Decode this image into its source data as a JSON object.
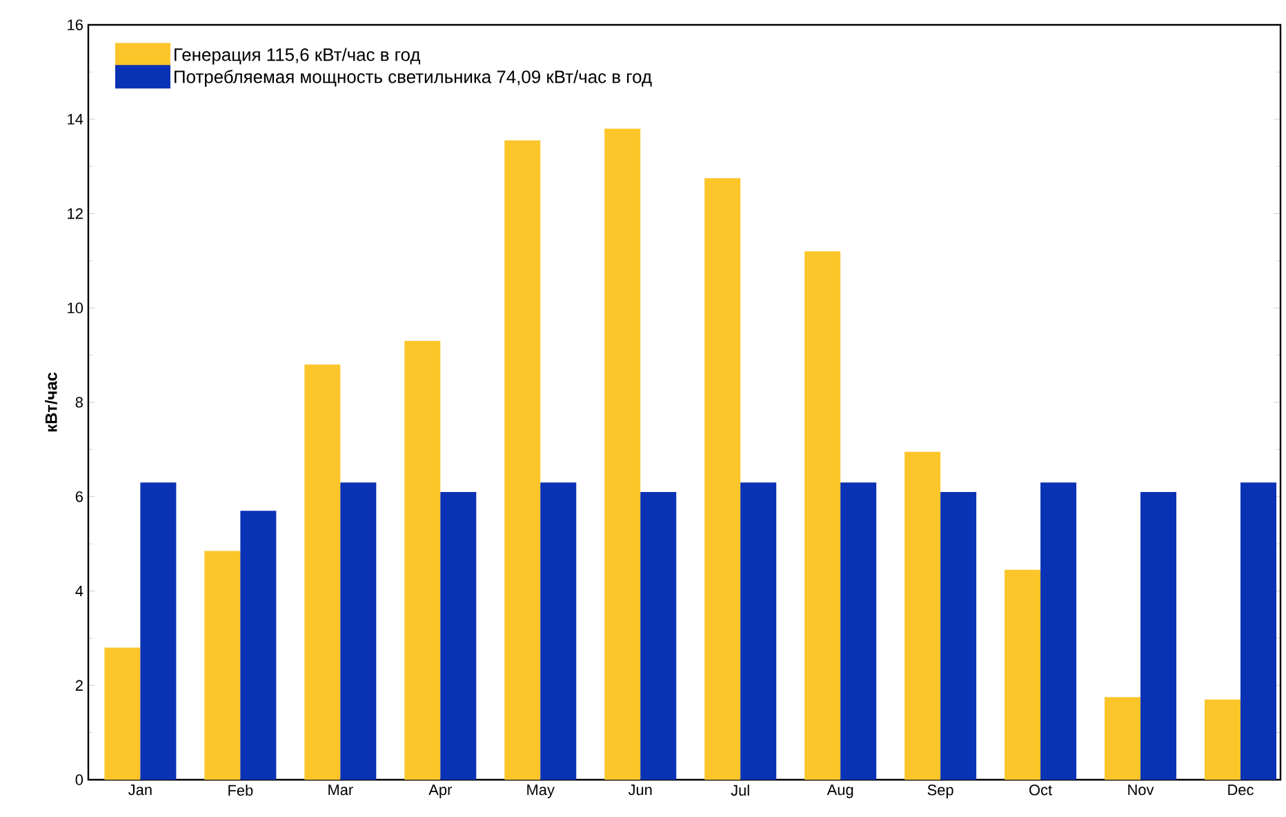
{
  "chart_data": {
    "type": "bar",
    "ylabel": "кВт/час",
    "categories": [
      "Jan",
      "Feb",
      "Mar",
      "Apr",
      "May",
      "Jun",
      "Jul",
      "Aug",
      "Sep",
      "Oct",
      "Nov",
      "Dec"
    ],
    "series": [
      {
        "name": "Генерация 115,6 кВт/час в год",
        "color": "#fcc52a",
        "values": [
          2.8,
          4.85,
          8.8,
          9.3,
          13.55,
          13.8,
          12.75,
          11.2,
          6.95,
          4.45,
          1.75,
          1.7
        ]
      },
      {
        "name": "Потребляемая мощность светильника 74,09 кВт/час в год",
        "color": "#0a32b4",
        "values": [
          6.3,
          5.7,
          6.3,
          6.1,
          6.3,
          6.1,
          6.3,
          6.3,
          6.1,
          6.3,
          6.1,
          6.3
        ]
      }
    ],
    "ylim": [
      0,
      16
    ],
    "yticks": [
      0,
      2,
      4,
      6,
      8,
      10,
      12,
      14,
      16
    ],
    "legend": "top left"
  }
}
